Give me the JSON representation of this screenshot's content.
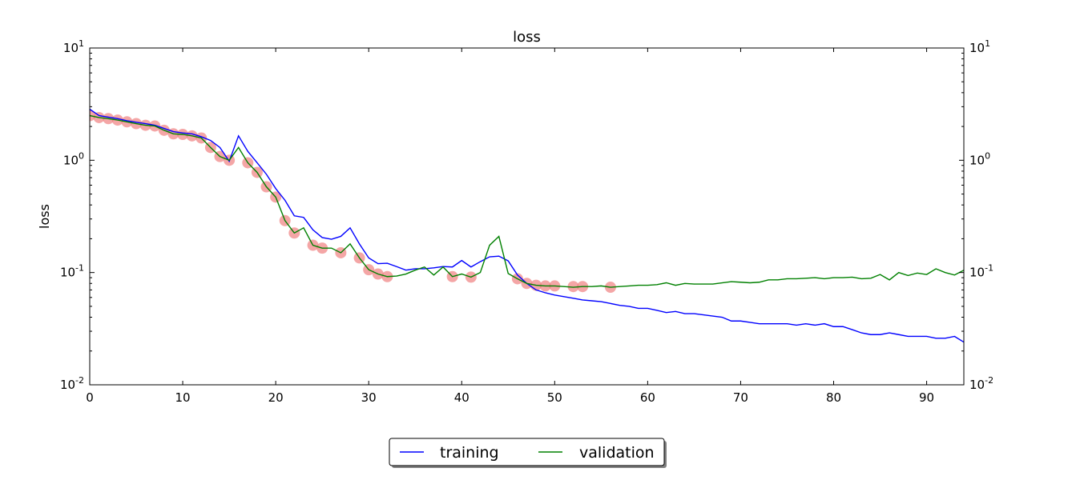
{
  "chart_data": {
    "type": "line",
    "title": "loss",
    "ylabel": "loss",
    "xlabel": "",
    "xlim": [
      0,
      94
    ],
    "ylim": [
      0.01,
      10
    ],
    "yscale": "log",
    "secondary_y_axis": true,
    "grid": false,
    "legend_position": "bottom-center",
    "x_ticks": [
      0,
      10,
      20,
      30,
      40,
      50,
      60,
      70,
      80,
      90
    ],
    "y_ticks": [
      {
        "value": 0.01,
        "base": "10",
        "exp": "-2"
      },
      {
        "value": 0.1,
        "base": "10",
        "exp": "-1"
      },
      {
        "value": 1,
        "base": "10",
        "exp": "0"
      },
      {
        "value": 10,
        "base": "10",
        "exp": "1"
      }
    ],
    "series": [
      {
        "name": "training",
        "color": "#0000ff",
        "x": [
          0,
          1,
          2,
          3,
          4,
          5,
          6,
          7,
          8,
          9,
          10,
          11,
          12,
          13,
          14,
          15,
          16,
          17,
          18,
          19,
          20,
          21,
          22,
          23,
          24,
          25,
          26,
          27,
          28,
          29,
          30,
          31,
          32,
          33,
          34,
          35,
          36,
          37,
          38,
          39,
          40,
          41,
          42,
          43,
          44,
          45,
          46,
          47,
          48,
          49,
          50,
          51,
          52,
          53,
          54,
          55,
          56,
          57,
          58,
          59,
          60,
          61,
          62,
          63,
          64,
          65,
          66,
          67,
          68,
          69,
          70,
          71,
          72,
          73,
          74,
          75,
          76,
          77,
          78,
          79,
          80,
          81,
          82,
          83,
          84,
          85,
          86,
          87,
          88,
          89,
          90,
          91,
          92,
          93,
          94
        ],
        "y": [
          2.85,
          2.5,
          2.42,
          2.35,
          2.25,
          2.18,
          2.12,
          2.05,
          1.92,
          1.8,
          1.75,
          1.72,
          1.62,
          1.5,
          1.3,
          0.98,
          1.65,
          1.2,
          0.95,
          0.75,
          0.56,
          0.44,
          0.32,
          0.31,
          0.24,
          0.205,
          0.198,
          0.21,
          0.25,
          0.18,
          0.135,
          0.12,
          0.121,
          0.113,
          0.105,
          0.108,
          0.108,
          0.11,
          0.113,
          0.112,
          0.128,
          0.112,
          0.125,
          0.138,
          0.14,
          0.127,
          0.095,
          0.08,
          0.07,
          0.066,
          0.063,
          0.061,
          0.059,
          0.057,
          0.056,
          0.055,
          0.053,
          0.051,
          0.05,
          0.048,
          0.048,
          0.046,
          0.044,
          0.045,
          0.043,
          0.043,
          0.042,
          0.041,
          0.04,
          0.037,
          0.037,
          0.036,
          0.035,
          0.035,
          0.035,
          0.035,
          0.034,
          0.035,
          0.034,
          0.035,
          0.033,
          0.033,
          0.031,
          0.029,
          0.028,
          0.028,
          0.029,
          0.028,
          0.027,
          0.027,
          0.027,
          0.026,
          0.026,
          0.027,
          0.024
        ]
      },
      {
        "name": "validation",
        "color": "#008000",
        "x": [
          0,
          1,
          2,
          3,
          4,
          5,
          6,
          7,
          8,
          9,
          10,
          11,
          12,
          13,
          14,
          15,
          16,
          17,
          18,
          19,
          20,
          21,
          22,
          23,
          24,
          25,
          26,
          27,
          28,
          29,
          30,
          31,
          32,
          33,
          34,
          35,
          36,
          37,
          38,
          39,
          40,
          41,
          42,
          43,
          44,
          45,
          46,
          47,
          48,
          49,
          50,
          51,
          52,
          53,
          54,
          55,
          56,
          57,
          58,
          59,
          60,
          61,
          62,
          63,
          64,
          65,
          66,
          67,
          68,
          69,
          70,
          71,
          72,
          73,
          74,
          75,
          76,
          77,
          78,
          79,
          80,
          81,
          82,
          83,
          84,
          85,
          86,
          87,
          88,
          89,
          90,
          91,
          92,
          93,
          94
        ],
        "y": [
          2.5,
          2.4,
          2.35,
          2.28,
          2.2,
          2.12,
          2.05,
          2.02,
          1.85,
          1.72,
          1.7,
          1.65,
          1.58,
          1.3,
          1.08,
          1.0,
          1.3,
          0.95,
          0.78,
          0.58,
          0.47,
          0.29,
          0.225,
          0.25,
          0.175,
          0.165,
          0.165,
          0.15,
          0.18,
          0.135,
          0.106,
          0.097,
          0.092,
          0.093,
          0.097,
          0.105,
          0.112,
          0.095,
          0.112,
          0.092,
          0.097,
          0.091,
          0.1,
          0.175,
          0.21,
          0.098,
          0.088,
          0.08,
          0.077,
          0.076,
          0.076,
          0.075,
          0.074,
          0.075,
          0.075,
          0.076,
          0.074,
          0.075,
          0.076,
          0.077,
          0.077,
          0.078,
          0.081,
          0.077,
          0.08,
          0.079,
          0.079,
          0.079,
          0.081,
          0.083,
          0.082,
          0.081,
          0.082,
          0.086,
          0.086,
          0.088,
          0.088,
          0.089,
          0.09,
          0.088,
          0.09,
          0.09,
          0.091,
          0.088,
          0.089,
          0.096,
          0.086,
          0.1,
          0.094,
          0.099,
          0.096,
          0.108,
          0.1,
          0.095,
          0.105
        ]
      }
    ],
    "markers": {
      "color": "#f08080",
      "x": [
        0,
        1,
        2,
        3,
        4,
        5,
        6,
        7,
        8,
        9,
        10,
        11,
        12,
        13,
        14,
        15,
        17,
        18,
        19,
        20,
        21,
        22,
        24,
        25,
        27,
        29,
        30,
        31,
        32,
        39,
        41,
        46,
        47,
        48,
        49,
        50,
        52,
        53,
        56
      ],
      "y": [
        2.5,
        2.4,
        2.35,
        2.28,
        2.2,
        2.12,
        2.05,
        2.02,
        1.85,
        1.72,
        1.7,
        1.65,
        1.58,
        1.3,
        1.08,
        1.0,
        0.95,
        0.78,
        0.58,
        0.47,
        0.29,
        0.225,
        0.175,
        0.165,
        0.15,
        0.135,
        0.106,
        0.097,
        0.092,
        0.092,
        0.091,
        0.088,
        0.08,
        0.077,
        0.076,
        0.076,
        0.075,
        0.075,
        0.074
      ]
    }
  }
}
